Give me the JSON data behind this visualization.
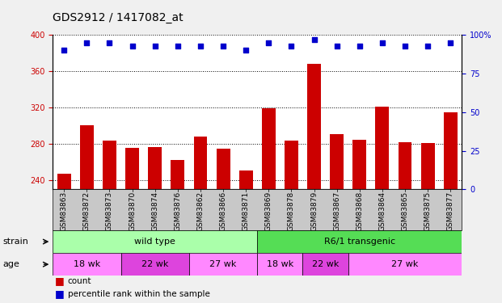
{
  "title": "GDS2912 / 1417082_at",
  "samples": [
    "GSM83863",
    "GSM83872",
    "GSM83873",
    "GSM83870",
    "GSM83874",
    "GSM83876",
    "GSM83862",
    "GSM83866",
    "GSM83871",
    "GSM83869",
    "GSM83878",
    "GSM83879",
    "GSM83867",
    "GSM83868",
    "GSM83864",
    "GSM83865",
    "GSM83875",
    "GSM83877"
  ],
  "counts": [
    247,
    301,
    284,
    276,
    277,
    262,
    288,
    275,
    251,
    319,
    284,
    368,
    291,
    285,
    321,
    282,
    281,
    315
  ],
  "percentile_ranks": [
    90,
    95,
    95,
    93,
    93,
    93,
    93,
    93,
    90,
    95,
    93,
    97,
    93,
    93,
    95,
    93,
    93,
    95
  ],
  "ylim_left": [
    230,
    400
  ],
  "ylim_right": [
    0,
    100
  ],
  "yticks_left": [
    240,
    280,
    320,
    360,
    400
  ],
  "yticks_right": [
    0,
    25,
    50,
    75,
    100
  ],
  "bar_color": "#cc0000",
  "dot_color": "#0000cc",
  "xtick_bg_color": "#c8c8c8",
  "plot_bg_color": "#ffffff",
  "fig_bg_color": "#f0f0f0",
  "strain_groups": [
    {
      "label": "wild type",
      "start": 0,
      "end": 9,
      "color": "#aaffaa"
    },
    {
      "label": "R6/1 transgenic",
      "start": 9,
      "end": 18,
      "color": "#55dd55"
    }
  ],
  "age_groups": [
    {
      "label": "18 wk",
      "start": 0,
      "end": 3,
      "color": "#ff88ff"
    },
    {
      "label": "22 wk",
      "start": 3,
      "end": 6,
      "color": "#dd44dd"
    },
    {
      "label": "27 wk",
      "start": 6,
      "end": 9,
      "color": "#ff88ff"
    },
    {
      "label": "18 wk",
      "start": 9,
      "end": 11,
      "color": "#ff88ff"
    },
    {
      "label": "22 wk",
      "start": 11,
      "end": 13,
      "color": "#dd44dd"
    },
    {
      "label": "27 wk",
      "start": 13,
      "end": 18,
      "color": "#ff88ff"
    }
  ],
  "legend_count_label": "count",
  "legend_pct_label": "percentile rank within the sample",
  "title_fontsize": 10,
  "tick_label_fontsize": 7,
  "row_label_fontsize": 8,
  "row_content_fontsize": 8,
  "legend_fontsize": 7.5
}
